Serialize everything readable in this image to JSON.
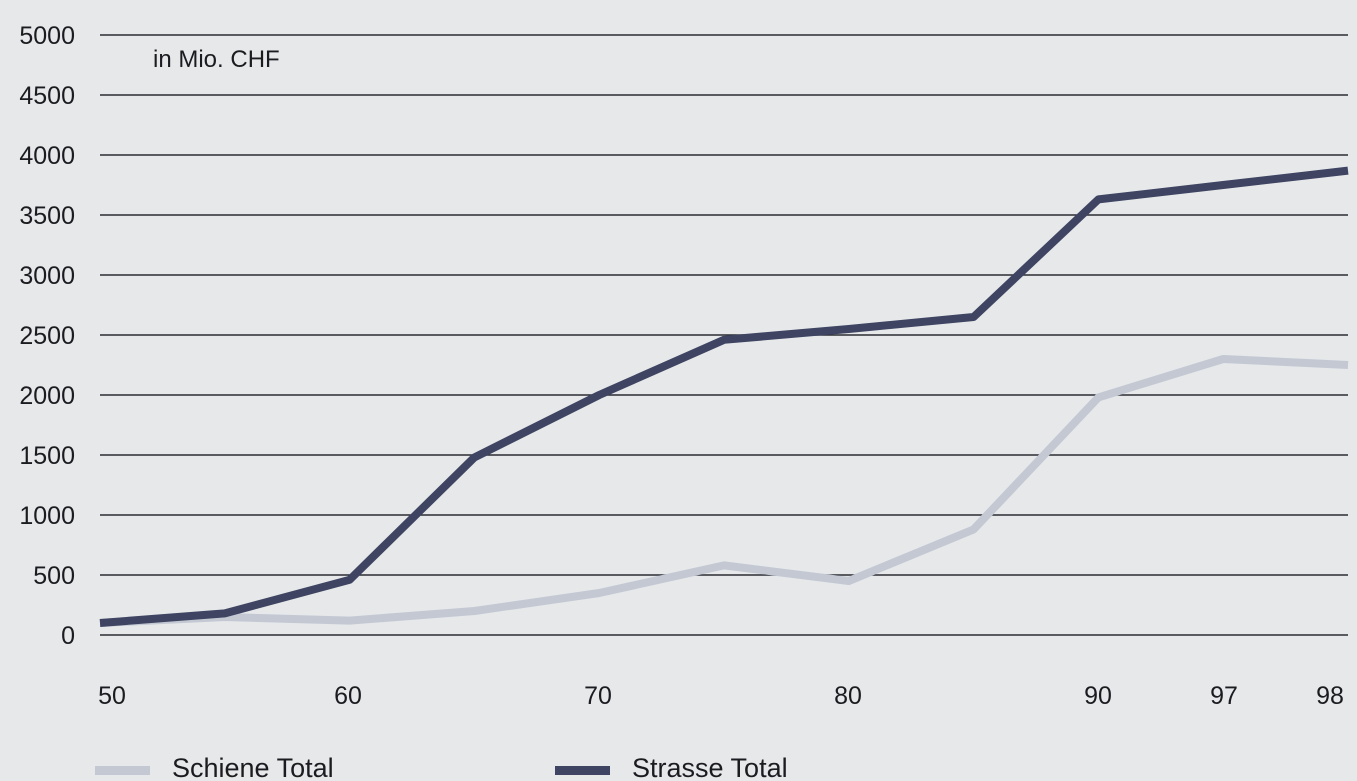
{
  "chart_data": {
    "type": "line",
    "unit_label": "in Mio. CHF",
    "x": [
      50,
      55,
      60,
      65,
      70,
      75,
      80,
      85,
      90,
      97,
      98
    ],
    "x_tick_labels": [
      "50",
      "60",
      "70",
      "80",
      "90",
      "97",
      "98"
    ],
    "y_tick_labels": [
      "5000",
      "4500",
      "4000",
      "3500",
      "3000",
      "2500",
      "2000",
      "1500",
      "1000",
      "500",
      "0"
    ],
    "ylim": [
      0,
      5000
    ],
    "grid": "horizontal",
    "legend_position": "bottom-left",
    "series": [
      {
        "name": "Schiene Total",
        "color": "#c3c8d3",
        "values": [
          100,
          150,
          120,
          200,
          350,
          580,
          450,
          880,
          1980,
          2300,
          2250
        ]
      },
      {
        "name": "Strasse Total",
        "color": "#3e4461",
        "values": [
          100,
          180,
          460,
          1480,
          2000,
          2460,
          2550,
          2650,
          3630,
          3750,
          3870
        ]
      }
    ]
  }
}
